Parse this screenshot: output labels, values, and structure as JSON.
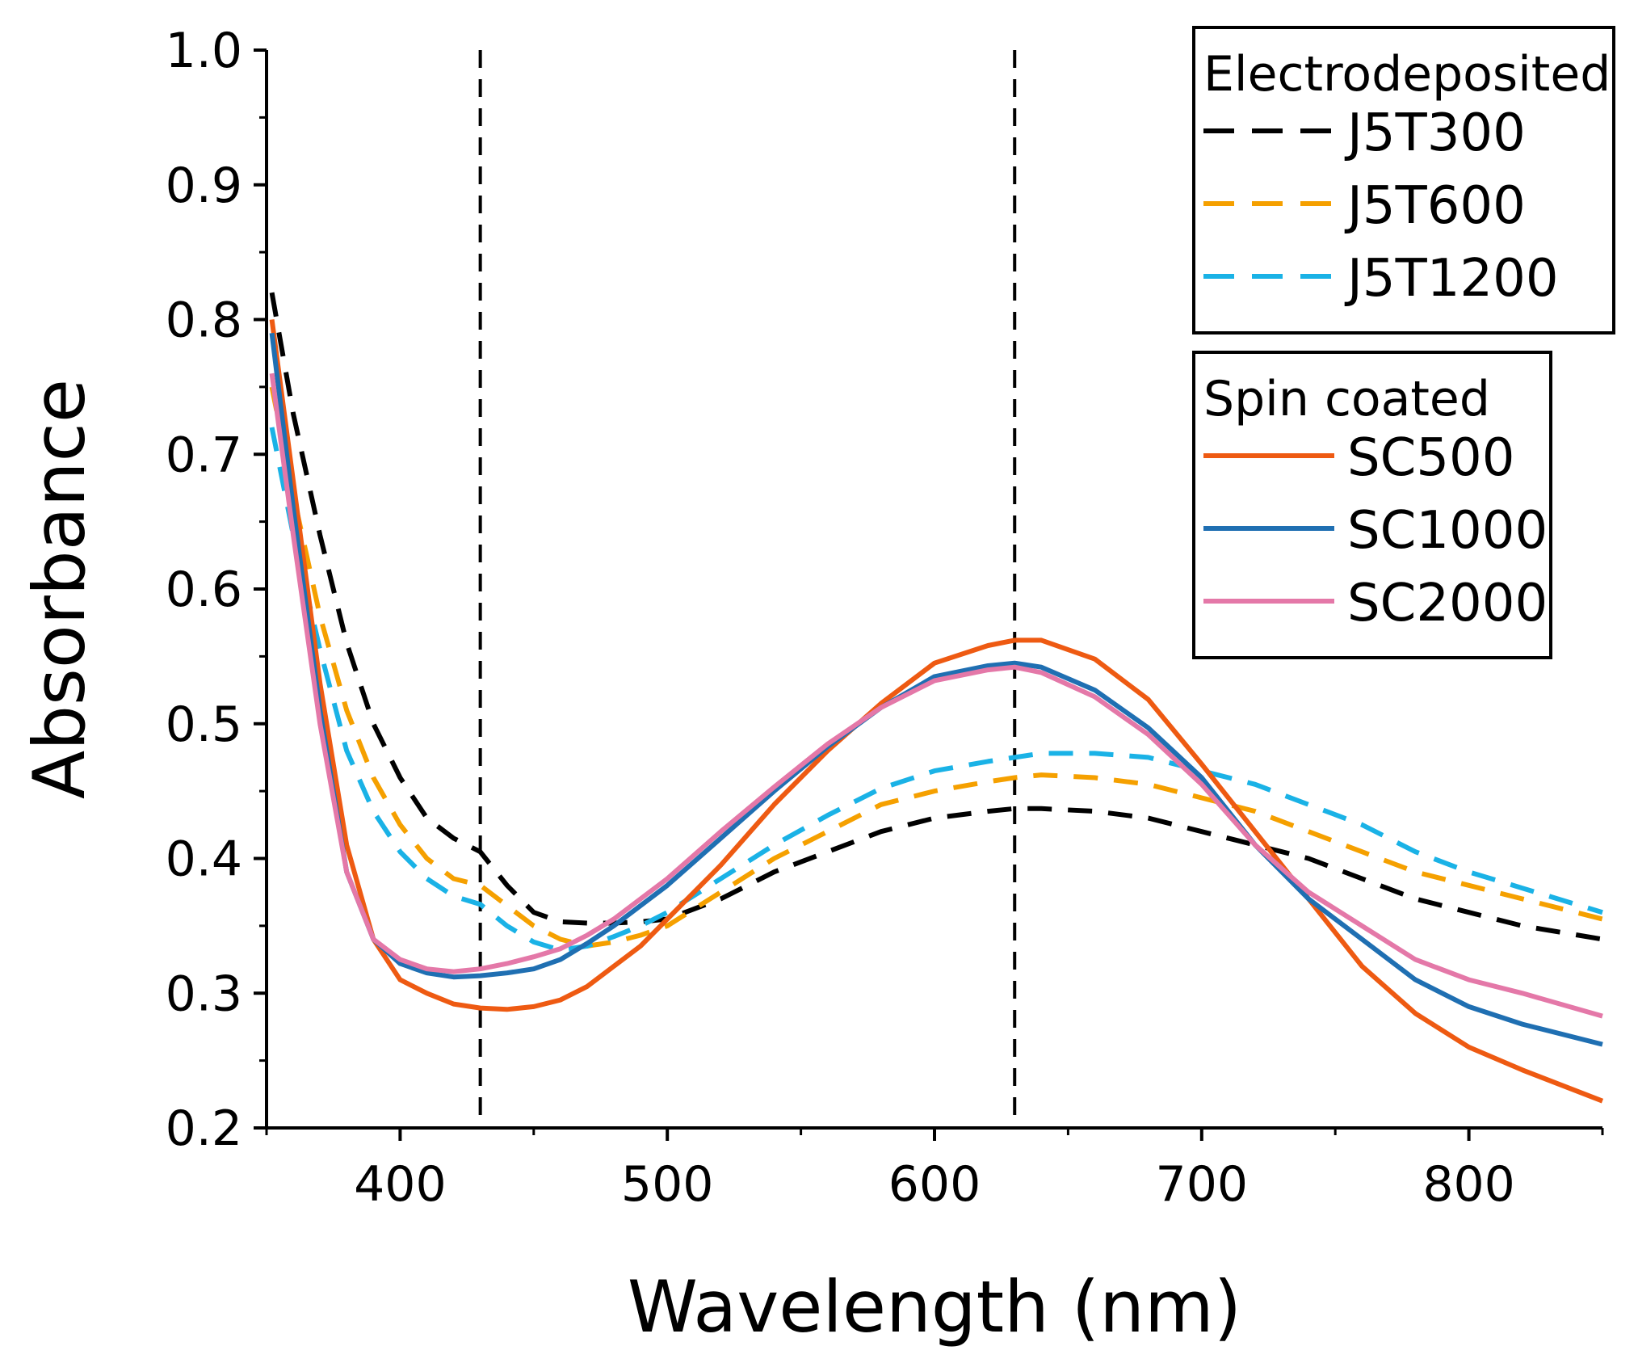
{
  "chart_data": {
    "type": "line",
    "title": "",
    "xlabel": "Wavelength (nm)",
    "ylabel": "Absorbance",
    "xlim": [
      350,
      850
    ],
    "ylim": [
      0.2,
      1.0
    ],
    "xticks": [
      400,
      500,
      600,
      700,
      800
    ],
    "yticks": [
      0.2,
      0.3,
      0.4,
      0.5,
      0.6,
      0.7,
      0.8,
      0.9,
      1.0
    ],
    "ytick_labels": [
      "0.2",
      "0.3",
      "0.4",
      "0.5",
      "0.6",
      "0.7",
      "0.8",
      "0.9",
      "1.0"
    ],
    "grid": false,
    "vlines": [
      430,
      630
    ],
    "legend_groups": [
      {
        "title": "Electrodeposited",
        "placement": "top-right",
        "series": [
          "J5T300",
          "J5T600",
          "J5T1200"
        ]
      },
      {
        "title": "Spin coated",
        "placement": "upper-right",
        "series": [
          "SC500",
          "SC1000",
          "SC2000"
        ]
      }
    ],
    "x": [
      352,
      360,
      370,
      380,
      390,
      400,
      410,
      420,
      430,
      440,
      450,
      460,
      470,
      480,
      490,
      500,
      520,
      540,
      560,
      580,
      600,
      620,
      630,
      640,
      660,
      680,
      700,
      720,
      740,
      760,
      780,
      800,
      820,
      850
    ],
    "series": [
      {
        "name": "J5T300",
        "style": "dashed",
        "color": "#000000",
        "values": [
          0.82,
          0.73,
          0.64,
          0.56,
          0.5,
          0.46,
          0.43,
          0.415,
          0.405,
          0.38,
          0.36,
          0.353,
          0.352,
          0.352,
          0.353,
          0.355,
          0.37,
          0.39,
          0.405,
          0.42,
          0.43,
          0.435,
          0.437,
          0.437,
          0.435,
          0.43,
          0.42,
          0.41,
          0.4,
          0.385,
          0.37,
          0.36,
          0.35,
          0.34
        ]
      },
      {
        "name": "J5T600",
        "style": "dashed",
        "color": "#F5A000",
        "values": [
          0.75,
          0.67,
          0.58,
          0.51,
          0.46,
          0.425,
          0.4,
          0.385,
          0.38,
          0.365,
          0.35,
          0.34,
          0.335,
          0.338,
          0.343,
          0.35,
          0.375,
          0.4,
          0.42,
          0.44,
          0.45,
          0.457,
          0.46,
          0.462,
          0.46,
          0.455,
          0.445,
          0.435,
          0.42,
          0.405,
          0.39,
          0.38,
          0.37,
          0.355
        ]
      },
      {
        "name": "J5T1200",
        "style": "dashed",
        "color": "#1AB2E6",
        "values": [
          0.72,
          0.64,
          0.555,
          0.48,
          0.435,
          0.405,
          0.385,
          0.372,
          0.366,
          0.35,
          0.338,
          0.332,
          0.335,
          0.342,
          0.35,
          0.36,
          0.385,
          0.41,
          0.432,
          0.452,
          0.465,
          0.472,
          0.475,
          0.478,
          0.478,
          0.475,
          0.465,
          0.455,
          0.44,
          0.425,
          0.405,
          0.39,
          0.378,
          0.36
        ]
      },
      {
        "name": "SC500",
        "style": "solid",
        "color": "#EE5A12",
        "values": [
          0.8,
          0.68,
          0.53,
          0.41,
          0.34,
          0.31,
          0.3,
          0.292,
          0.289,
          0.288,
          0.29,
          0.295,
          0.305,
          0.32,
          0.335,
          0.355,
          0.395,
          0.44,
          0.48,
          0.515,
          0.545,
          0.558,
          0.562,
          0.562,
          0.548,
          0.518,
          0.47,
          0.42,
          0.37,
          0.32,
          0.285,
          0.26,
          0.243,
          0.22
        ]
      },
      {
        "name": "SC1000",
        "style": "solid",
        "color": "#1F6FB2",
        "values": [
          0.79,
          0.66,
          0.51,
          0.39,
          0.34,
          0.322,
          0.315,
          0.312,
          0.313,
          0.315,
          0.318,
          0.325,
          0.337,
          0.35,
          0.365,
          0.38,
          0.415,
          0.45,
          0.483,
          0.512,
          0.535,
          0.543,
          0.545,
          0.542,
          0.525,
          0.497,
          0.46,
          0.41,
          0.37,
          0.34,
          0.31,
          0.29,
          0.277,
          0.262
        ]
      },
      {
        "name": "SC2000",
        "style": "solid",
        "color": "#E478A8",
        "values": [
          0.76,
          0.64,
          0.5,
          0.39,
          0.34,
          0.325,
          0.318,
          0.316,
          0.318,
          0.322,
          0.327,
          0.333,
          0.343,
          0.355,
          0.37,
          0.385,
          0.42,
          0.453,
          0.485,
          0.512,
          0.532,
          0.54,
          0.542,
          0.538,
          0.52,
          0.492,
          0.455,
          0.41,
          0.375,
          0.35,
          0.325,
          0.31,
          0.3,
          0.283
        ]
      }
    ]
  }
}
